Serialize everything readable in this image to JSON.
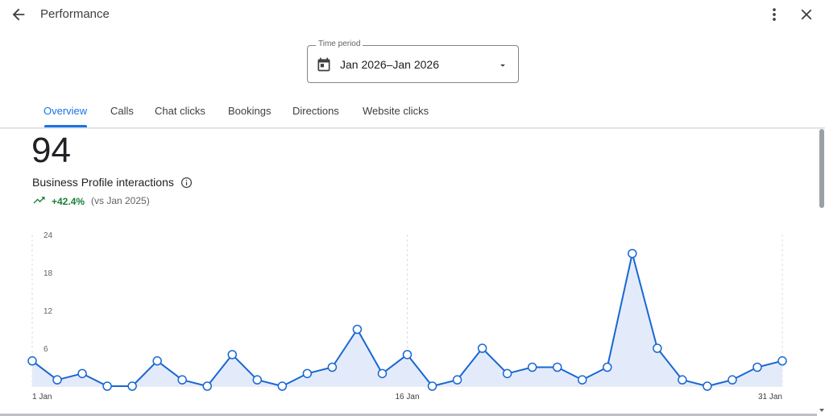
{
  "header": {
    "title": "Performance",
    "back_icon": "arrow-back-icon",
    "more_icon": "more-vert-icon",
    "close_icon": "close-icon"
  },
  "time_period": {
    "label": "Time period",
    "value": "Jan 2026–Jan 2026",
    "icon": "calendar-icon",
    "dropdown_icon": "caret-down-icon"
  },
  "tabs": [
    {
      "label": "Overview",
      "active": true
    },
    {
      "label": "Calls",
      "active": false
    },
    {
      "label": "Chat clicks",
      "active": false
    },
    {
      "label": "Bookings",
      "active": false
    },
    {
      "label": "Directions",
      "active": false
    },
    {
      "label": "Website clicks",
      "active": false
    }
  ],
  "metric": {
    "value": "94",
    "label": "Business Profile interactions",
    "change": "+42.4%",
    "comparison": "(vs Jan 2025)",
    "trend_icon": "trending-up-icon",
    "info_icon": "info-icon"
  },
  "colors": {
    "accent": "#1a73e8",
    "line": "#1967d2",
    "area_fill": "#e3ebfb",
    "positive": "#188038"
  },
  "chart_data": {
    "type": "line",
    "title": "",
    "xlabel": "",
    "ylabel": "",
    "ylim": [
      0,
      24
    ],
    "y_ticks": [
      "24",
      "18",
      "12",
      "6"
    ],
    "x_tick_labels": [
      {
        "day": 1,
        "label": "1 Jan"
      },
      {
        "day": 16,
        "label": "16 Jan"
      },
      {
        "day": 31,
        "label": "31 Jan"
      }
    ],
    "x": [
      1,
      2,
      3,
      4,
      5,
      6,
      7,
      8,
      9,
      10,
      11,
      12,
      13,
      14,
      15,
      16,
      17,
      18,
      19,
      20,
      21,
      22,
      23,
      24,
      25,
      26,
      27,
      28,
      29,
      30,
      31
    ],
    "series": [
      {
        "values": [
          4,
          1,
          2,
          0,
          0,
          4,
          1,
          0,
          5,
          1,
          0,
          2,
          3,
          9,
          2,
          5,
          0,
          1,
          6,
          2,
          3,
          3,
          1,
          3,
          21,
          6,
          1,
          0,
          1,
          3,
          4
        ]
      }
    ],
    "grid": true
  }
}
